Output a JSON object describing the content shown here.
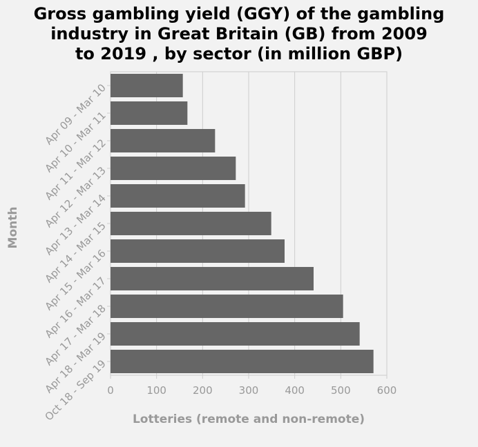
{
  "chart_data": {
    "type": "bar",
    "orientation": "horizontal",
    "title": "Gross gambling yield (GGY) of the gambling industry in Great Britain (GB) from 2009 to 2019 , by sector (in million GBP)",
    "title_lines": [
      "Gross gambling yield (GGY) of the gambling",
      "industry in Great Britain (GB) from 2009",
      "to 2019 , by sector (in million GBP)"
    ],
    "xlabel": "Lotteries (remote and non-remote)",
    "ylabel": "Month",
    "categories": [
      "Apr 09 - Mar 10",
      "Apr 10 - Mar 11",
      "Apr 11 - Mar 12",
      "Apr 12 - Mar 13",
      "Apr 13 - Mar 14",
      "Apr 14 - Mar 15",
      "Apr 15 - Mar 16",
      "Apr 16 - Mar 17",
      "Apr 17 - Mar 18",
      "Apr 18 - Mar 19",
      "Oct 18 - Sep 19"
    ],
    "values": [
      157,
      167,
      227,
      272,
      292,
      349,
      378,
      441,
      505,
      541,
      571
    ],
    "xlim": [
      0,
      600
    ],
    "xticks": [
      0,
      100,
      200,
      300,
      400,
      500,
      600
    ],
    "xgrid": true,
    "bar_color": "#666666",
    "grid_color": "#cccccc",
    "text_color": "#999999"
  }
}
